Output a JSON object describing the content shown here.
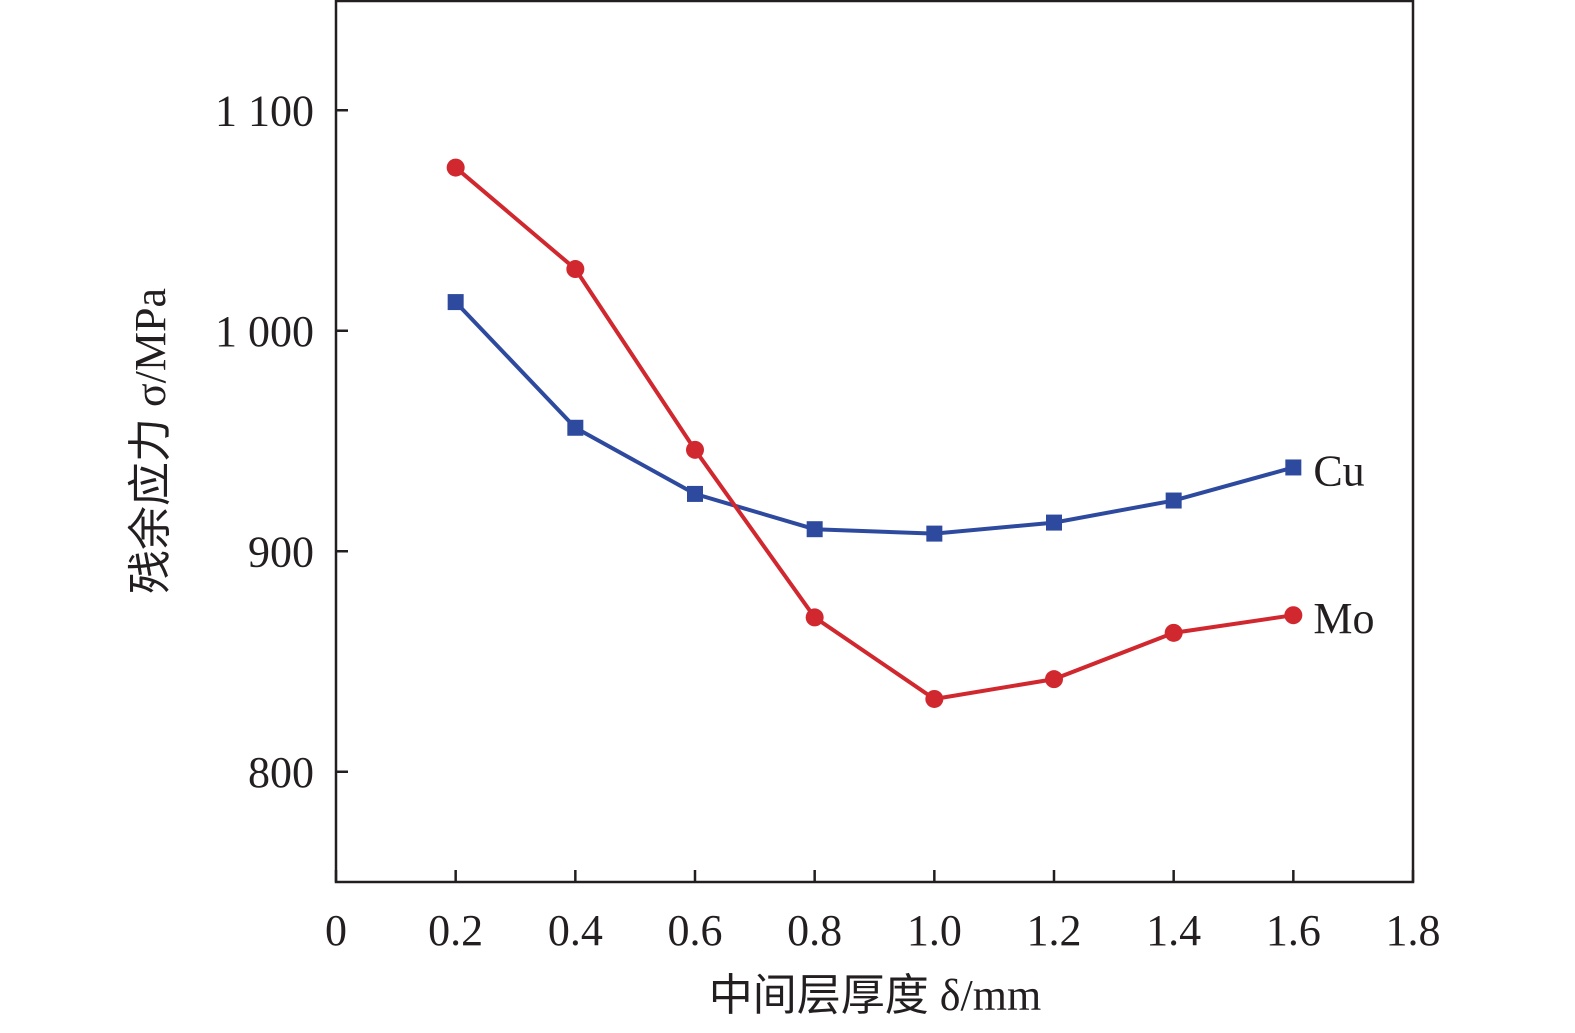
{
  "chart_data": {
    "type": "line",
    "title": "",
    "xlabel": "中间层厚度 δ/mm",
    "ylabel": "残余应力 σ/MPa",
    "xlim": [
      0,
      1.8
    ],
    "ylim": [
      750,
      1150
    ],
    "xticks": [
      0,
      0.2,
      0.4,
      0.6,
      0.8,
      1.0,
      1.2,
      1.4,
      1.6,
      1.8
    ],
    "xtick_labels": [
      "0",
      "0.2",
      "0.4",
      "0.6",
      "0.8",
      "1.0",
      "1.2",
      "1.4",
      "1.6",
      "1.8"
    ],
    "yticks": [
      800,
      900,
      1000,
      1100
    ],
    "ytick_labels": [
      "800",
      "900",
      "1 000",
      "1 100"
    ],
    "grid": false,
    "x": [
      0.2,
      0.4,
      0.6,
      0.8,
      1.0,
      1.2,
      1.4,
      1.6
    ],
    "series": [
      {
        "name": "Cu",
        "color": "#2e4a9e",
        "marker": "square",
        "values": [
          1013,
          956,
          926,
          910,
          908,
          913,
          923,
          938
        ]
      },
      {
        "name": "Mo",
        "color": "#d0282e",
        "marker": "circle",
        "values": [
          1074,
          1028,
          946,
          870,
          833,
          842,
          863,
          871
        ]
      }
    ]
  }
}
